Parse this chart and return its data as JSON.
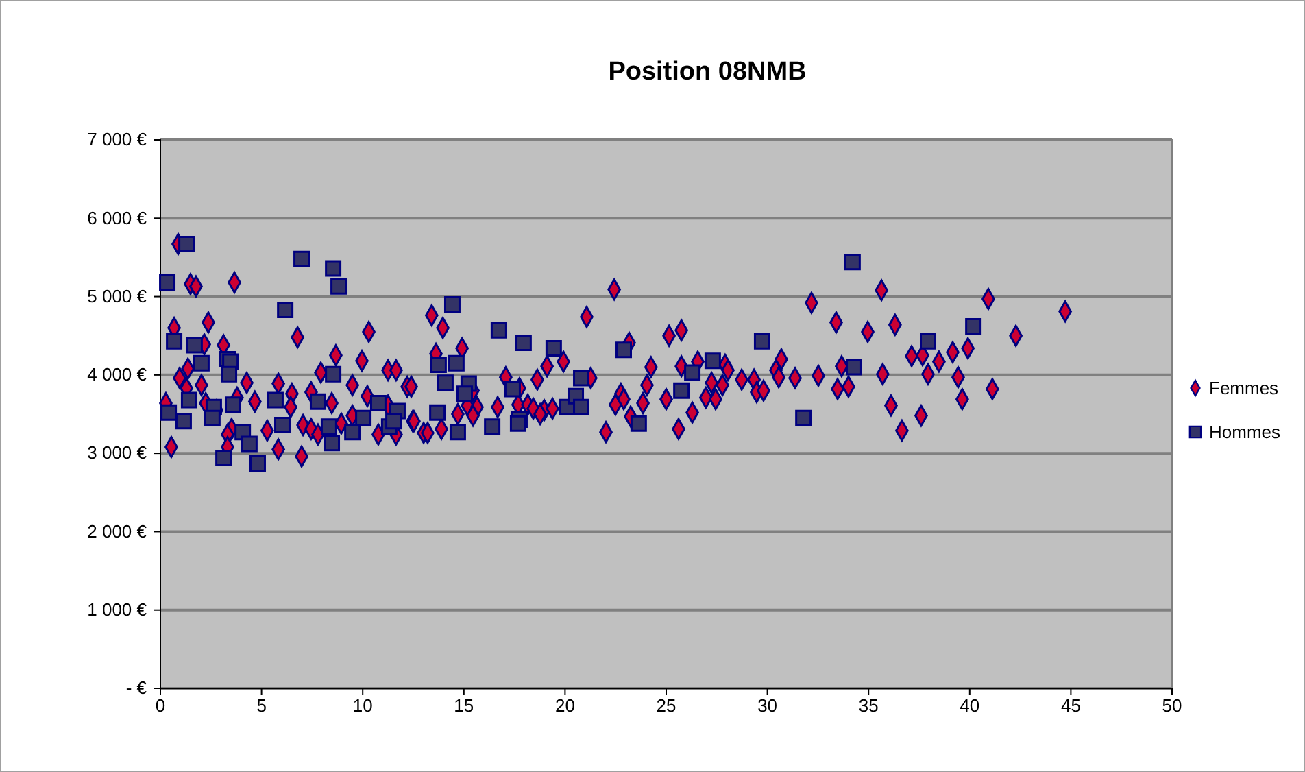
{
  "chart_data": {
    "type": "scatter",
    "title": "Position 08NMB",
    "xlim": [
      0,
      50
    ],
    "xticks": [
      0,
      5,
      10,
      15,
      20,
      25,
      30,
      35,
      40,
      45,
      50
    ],
    "ylim": [
      0,
      7000
    ],
    "yticks": [
      {
        "value": 0,
        "label": "-   €"
      },
      {
        "value": 1000,
        "label": "1 000 €"
      },
      {
        "value": 2000,
        "label": "2 000 €"
      },
      {
        "value": 3000,
        "label": "3 000 €"
      },
      {
        "value": 4000,
        "label": "4 000 €"
      },
      {
        "value": 5000,
        "label": "5 000 €"
      },
      {
        "value": 6000,
        "label": "6 000 €"
      },
      {
        "value": 7000,
        "label": "7 000 €"
      }
    ],
    "grid": "y",
    "legend": "right",
    "series": [
      {
        "name": "Femmes",
        "color": "#cc0033",
        "marker": "diamond",
        "x": [
          0.88,
          1.49,
          1.76,
          3.66,
          2.37,
          0.68,
          6.78,
          10.3,
          2.17,
          3.12,
          8.67,
          9.96,
          1.36,
          7.93,
          11.25,
          11.65,
          0.95,
          2.03,
          1.29,
          4.27,
          5.83,
          9.49,
          12.2,
          6.5,
          7.45,
          10.23,
          0.27,
          2.24,
          3.79,
          4.67,
          6.44,
          8.47,
          11.25,
          2.78,
          9.49,
          12.47,
          3.52,
          3.32,
          5.28,
          7.05,
          7.45,
          7.79,
          8.94,
          10.77,
          11.65,
          13.01,
          0.54,
          3.32,
          5.83,
          6.98,
          22.43,
          13.41,
          21.07,
          13.96,
          25.14,
          25.75,
          14.91,
          13.62,
          23.17,
          19.11,
          19.92,
          24.25,
          25.75,
          17.07,
          18.63,
          21.27,
          12.4,
          24.05,
          15.45,
          17.75,
          22.76,
          25.0,
          22.9,
          22.49,
          23.85,
          15.18,
          15.65,
          16.67,
          17.68,
          18.16,
          18.43,
          18.97,
          19.38,
          18.77,
          14.7,
          15.45,
          23.24,
          12.53,
          13.89,
          13.21,
          25.61,
          22.02,
          32.18,
          35.64,
          33.4,
          36.31,
          34.96,
          30.69,
          37.13,
          37.67,
          38.48,
          26.56,
          27.91,
          28.05,
          30.42,
          33.67,
          35.7,
          37.94,
          30.56,
          31.37,
          32.52,
          27.24,
          27.78,
          28.73,
          29.34,
          29.47,
          29.81,
          33.47,
          34.01,
          26.96,
          27.44,
          26.29,
          36.11,
          36.65,
          37.6,
          40.92,
          44.72,
          42.28,
          39.91,
          39.16,
          39.43,
          41.12,
          39.63
        ],
        "values": [
          5670,
          5160,
          5130,
          5180,
          4670,
          4600,
          4480,
          4550,
          4390,
          4380,
          4250,
          4180,
          4080,
          4030,
          4060,
          4060,
          3960,
          3870,
          3830,
          3900,
          3890,
          3870,
          3850,
          3760,
          3780,
          3730,
          3640,
          3640,
          3710,
          3660,
          3590,
          3640,
          3610,
          3550,
          3480,
          3410,
          3310,
          3240,
          3290,
          3360,
          3310,
          3240,
          3380,
          3240,
          3240,
          3260,
          3080,
          3080,
          3050,
          2960,
          5090,
          4760,
          4740,
          4600,
          4500,
          4570,
          4340,
          4270,
          4410,
          4110,
          4170,
          4100,
          4110,
          3970,
          3940,
          3960,
          3850,
          3870,
          3800,
          3830,
          3760,
          3690,
          3690,
          3620,
          3640,
          3610,
          3590,
          3590,
          3620,
          3620,
          3570,
          3550,
          3570,
          3500,
          3500,
          3480,
          3470,
          3410,
          3310,
          3260,
          3310,
          3270,
          4920,
          5080,
          4670,
          4640,
          4550,
          4200,
          4240,
          4250,
          4170,
          4170,
          4130,
          4060,
          4060,
          4110,
          4010,
          4010,
          3970,
          3960,
          3990,
          3900,
          3870,
          3940,
          3940,
          3780,
          3800,
          3820,
          3850,
          3710,
          3690,
          3520,
          3610,
          3290,
          3480,
          4970,
          4810,
          4500,
          4340,
          4290,
          3970,
          3820,
          3690
        ]
      },
      {
        "name": "Hommes",
        "color": "#333366",
        "marker": "square",
        "x": [
          1.29,
          0.34,
          6.98,
          8.54,
          8.81,
          6.17,
          0.68,
          1.69,
          2.03,
          3.32,
          3.46,
          3.39,
          8.54,
          1.42,
          2.64,
          3.59,
          5.69,
          7.79,
          0.41,
          1.15,
          2.57,
          6.03,
          8.33,
          4.07,
          4.4,
          8.47,
          3.12,
          4.81,
          9.49,
          10.03,
          10.77,
          11.72,
          11.31,
          11.52,
          14.43,
          13.75,
          14.63,
          14.09,
          15.24,
          15.04,
          13.69,
          14.7,
          16.4,
          16.73,
          17.95,
          17.41,
          17.75,
          17.68,
          19.44,
          20.12,
          20.53,
          20.8,
          20.8,
          22.9,
          23.64,
          25.75,
          26.29,
          27.3,
          29.74,
          31.78,
          34.21,
          34.28,
          37.94,
          40.18
        ],
        "values": [
          5670,
          5180,
          5480,
          5360,
          5130,
          4830,
          4430,
          4380,
          4150,
          4200,
          4170,
          4010,
          4010,
          3680,
          3590,
          3620,
          3680,
          3660,
          3520,
          3410,
          3450,
          3360,
          3340,
          3270,
          3120,
          3130,
          2940,
          2870,
          3270,
          3450,
          3640,
          3540,
          3340,
          3410,
          4900,
          4130,
          4150,
          3900,
          3890,
          3760,
          3520,
          3270,
          3340,
          4570,
          4410,
          3820,
          3430,
          3380,
          4340,
          3590,
          3730,
          3590,
          3960,
          4320,
          3380,
          3800,
          4030,
          4180,
          4430,
          3450,
          5440,
          4100,
          4430,
          4620
        ]
      }
    ]
  }
}
